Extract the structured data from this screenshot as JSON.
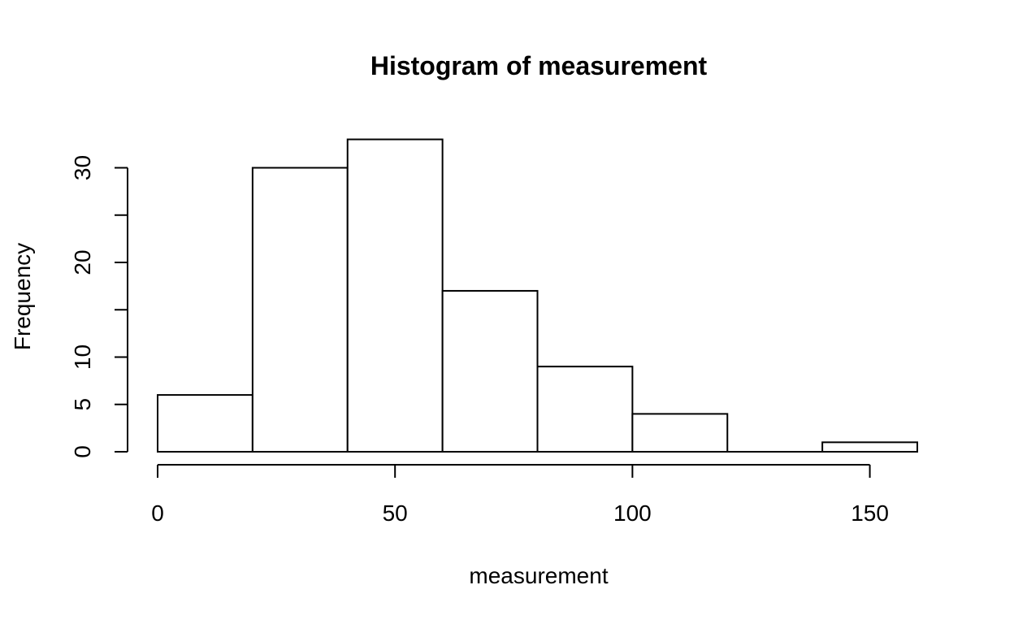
{
  "chart_data": {
    "type": "bar",
    "title": "Histogram of measurement",
    "xlabel": "measurement",
    "ylabel": "Frequency",
    "bins": [
      {
        "from": 0,
        "to": 20,
        "count": 6
      },
      {
        "from": 20,
        "to": 40,
        "count": 30
      },
      {
        "from": 40,
        "to": 60,
        "count": 33
      },
      {
        "from": 60,
        "to": 80,
        "count": 17
      },
      {
        "from": 80,
        "to": 100,
        "count": 9
      },
      {
        "from": 100,
        "to": 120,
        "count": 4
      },
      {
        "from": 120,
        "to": 140,
        "count": 0
      },
      {
        "from": 140,
        "to": 160,
        "count": 1
      }
    ],
    "x_ticks": [
      0,
      50,
      100,
      150
    ],
    "y_ticks": [
      0,
      5,
      10,
      15,
      20,
      25,
      30
    ],
    "y_tick_labels": [
      "0",
      "5",
      "10",
      "",
      "20",
      "",
      "30"
    ],
    "xlim": [
      0,
      160
    ],
    "ylim": [
      0,
      33
    ],
    "grid": false,
    "colors": {
      "bar_fill": "#ffffff",
      "bar_stroke": "#000000"
    }
  }
}
